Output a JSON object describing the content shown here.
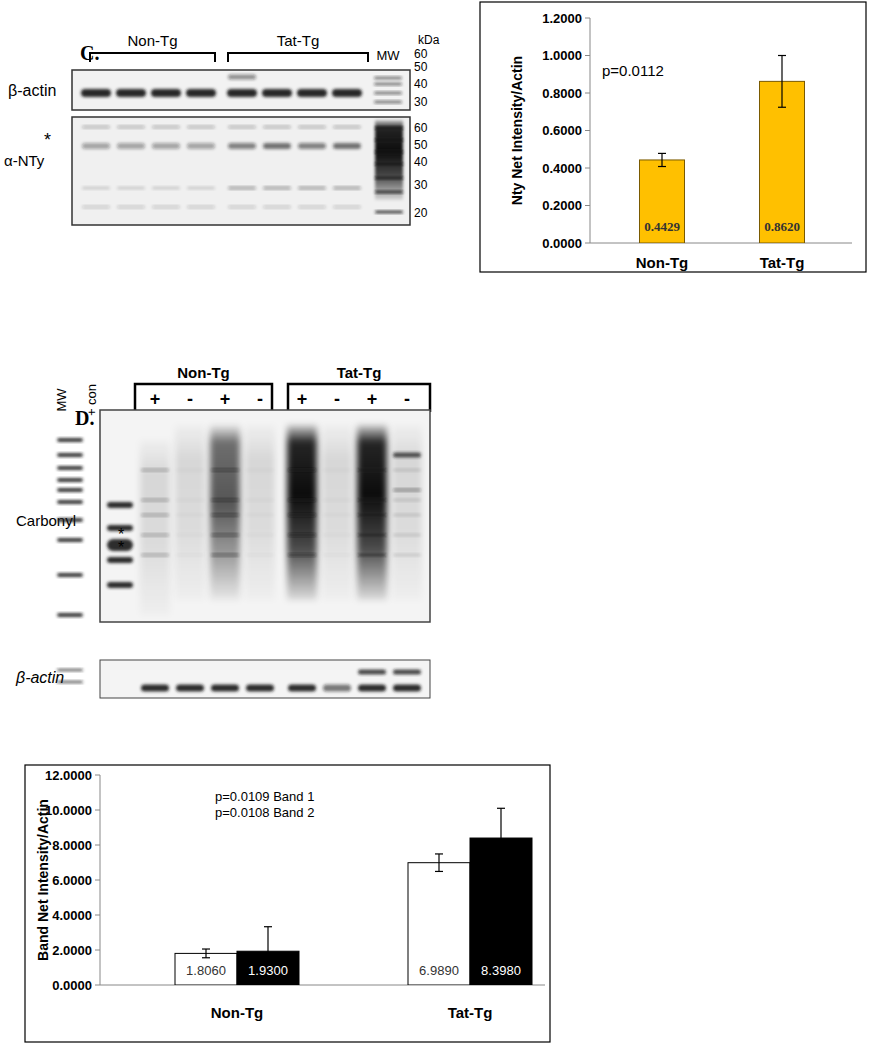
{
  "chart_data": [
    {
      "type": "bar",
      "categories": [
        "Non-Tg",
        "Tat-Tg"
      ],
      "values": [
        0.4429,
        0.862
      ],
      "value_labels": [
        "0.4429",
        "0.8620"
      ],
      "errors": [
        0.035,
        0.138
      ],
      "color": "#ffc000",
      "y_label": "Nty Net Intensity/Actin",
      "annotations": [
        "p=0.0112"
      ],
      "ylim": [
        0,
        1.2
      ],
      "yticks": [
        {
          "value": 0,
          "label": "0.0000"
        },
        {
          "value": 0.2,
          "label": "0.2000"
        },
        {
          "value": 0.4,
          "label": "0.4000"
        },
        {
          "value": 0.6,
          "label": "0.6000"
        },
        {
          "value": 0.8,
          "label": "0.8000"
        },
        {
          "value": 1,
          "label": "1.0000"
        },
        {
          "value": 1.2,
          "label": "1.2000"
        }
      ],
      "data_labels": true,
      "grid": false
    },
    {
      "type": "bar",
      "categories": [
        "Non-Tg",
        "Tat-Tg"
      ],
      "series": [
        {
          "color": "#ffffff",
          "values": [
            1.806,
            6.989
          ],
          "value_labels": [
            "1.8060",
            "6.9890"
          ],
          "errors": [
            0.25,
            0.5
          ]
        },
        {
          "color": "#000000",
          "values": [
            1.93,
            8.398
          ],
          "value_labels": [
            "1.9300",
            "8.3980"
          ],
          "errors": [
            1.4,
            1.7
          ]
        }
      ],
      "y_label": "Band Net Intensity/Actin",
      "annotations": [
        "p=0.0109 Band 1",
        "p=0.0108 Band 2"
      ],
      "ylim": [
        0,
        12
      ],
      "yticks": [
        {
          "value": 0,
          "label": "0.0000"
        },
        {
          "value": 2,
          "label": "2.0000"
        },
        {
          "value": 4,
          "label": "4.0000"
        },
        {
          "value": 6,
          "label": "6.0000"
        },
        {
          "value": 8,
          "label": "8.0000"
        },
        {
          "value": 10,
          "label": "10.0000"
        },
        {
          "value": 12,
          "label": "12.0000"
        }
      ],
      "data_labels": true,
      "grid": false
    }
  ],
  "figure": {
    "panel_c": {
      "label": "C.",
      "groups": [
        "Non-Tg",
        "Tat-Tg"
      ],
      "mw": "MW",
      "unit": "kDa",
      "actin_label": "β-actin",
      "nty_label": "α-NTy",
      "star": "*",
      "actin_markers": [
        60,
        50,
        40,
        30
      ],
      "nty_markers": [
        60,
        50,
        40,
        30,
        20
      ]
    },
    "panel_d": {
      "label": "D.",
      "mw": "MW",
      "control": "+ con",
      "groups": [
        "Non-Tg",
        "Tat-Tg"
      ],
      "lanes": [
        "+",
        "-",
        "+",
        "-",
        "+",
        "-",
        "+",
        "-"
      ],
      "carbonyl_label": "Carbonyl",
      "actin_label": "β-actin",
      "stars": [
        "*",
        "*"
      ]
    }
  }
}
